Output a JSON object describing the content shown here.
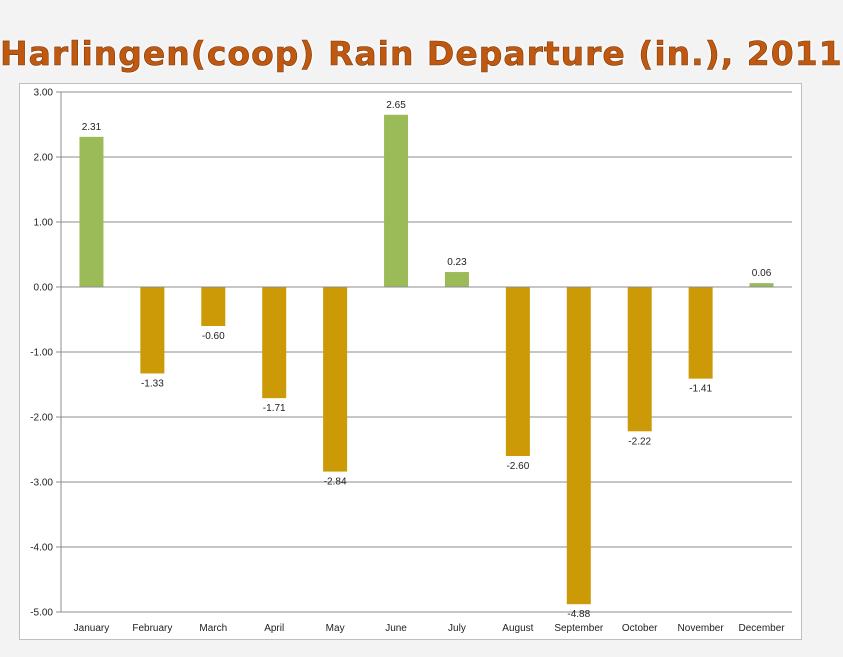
{
  "chart_data": {
    "type": "bar",
    "title": "Harlingen(coop) Rain Departure (in.), 2011",
    "xlabel": "",
    "ylabel": "",
    "categories": [
      "January",
      "February",
      "March",
      "April",
      "May",
      "June",
      "July",
      "August",
      "September",
      "October",
      "November",
      "December"
    ],
    "values": [
      2.31,
      -1.33,
      -0.6,
      -1.71,
      -2.84,
      2.65,
      0.23,
      -2.6,
      -4.88,
      -2.22,
      -1.41,
      0.06
    ],
    "data_labels": [
      "2.31",
      "-1.33",
      "-0.60",
      "-1.71",
      "-2.84",
      "2.65",
      "0.23",
      "-2.60",
      "-4.88",
      "-2.22",
      "-1.41",
      "0.06"
    ],
    "ylim": [
      -5,
      3
    ],
    "yticks": [
      3,
      2,
      1,
      0,
      -1,
      -2,
      -3,
      -4,
      -5
    ],
    "ytick_labels": [
      "3.00",
      "2.00",
      "1.00",
      "0.00",
      "-1.00",
      "-2.00",
      "-3.00",
      "-4.00",
      "-5.00"
    ],
    "grid": true,
    "colors": {
      "positive": "#9bbb59",
      "negative": "#cc9a06",
      "gridline": "#8c8c8c",
      "title": "#c0580f"
    }
  }
}
